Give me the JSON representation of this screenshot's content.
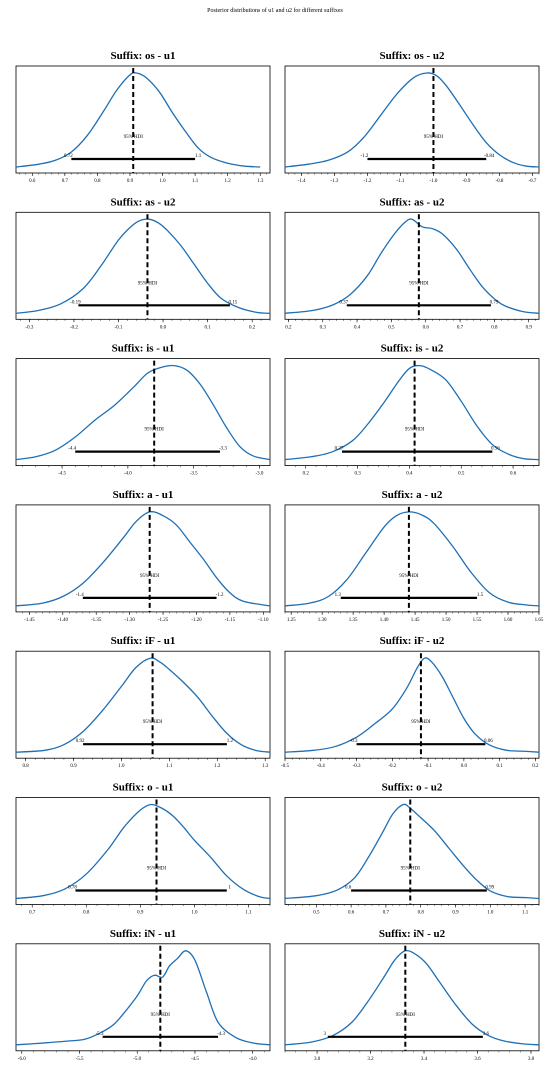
{
  "suptitle": "Posterior distributions of u1 and u2 for different suffixes",
  "chart_data": [
    {
      "type": "area",
      "title": "Suffix: os - u1",
      "xlim": [
        0.55,
        1.33
      ],
      "xticks": [
        {
          "v": 0.6,
          "t": "0.6"
        },
        {
          "v": 0.7,
          "t": "0.7"
        },
        {
          "v": 0.8,
          "t": "0.8"
        },
        {
          "v": 0.9,
          "t": "0.9"
        },
        {
          "v": 1.0,
          "t": "1.0"
        },
        {
          "v": 1.1,
          "t": "1.1"
        },
        {
          "v": 1.2,
          "t": "1.2"
        },
        {
          "v": 1.3,
          "t": "1.3"
        }
      ],
      "mean": 0.91,
      "hdi": [
        0.72,
        1.1
      ],
      "hdi_text": "95% HDI",
      "hdi_labels": [
        "0.72",
        "1.1"
      ],
      "density": {
        "x": [
          0.55,
          0.62,
          0.67,
          0.72,
          0.77,
          0.82,
          0.86,
          0.9,
          0.92,
          0.95,
          0.99,
          1.03,
          1.07,
          1.11,
          1.15,
          1.2,
          1.25,
          1.3
        ],
        "y": [
          0.0,
          0.03,
          0.07,
          0.16,
          0.34,
          0.6,
          0.82,
          0.98,
          1.0,
          0.95,
          0.8,
          0.58,
          0.38,
          0.2,
          0.1,
          0.04,
          0.01,
          0.0
        ]
      }
    },
    {
      "type": "area",
      "title": "Suffix: os - u2",
      "xlim": [
        -1.45,
        -0.68
      ],
      "xticks": [
        {
          "v": -1.4,
          "t": "-1.4"
        },
        {
          "v": -1.3,
          "t": "-1.3"
        },
        {
          "v": -1.2,
          "t": "-1.2"
        },
        {
          "v": -1.1,
          "t": "-1.1"
        },
        {
          "v": -1.0,
          "t": "-1.0"
        },
        {
          "v": -0.9,
          "t": "-0.9"
        },
        {
          "v": -0.8,
          "t": "-0.8"
        },
        {
          "v": -0.7,
          "t": "-0.7"
        }
      ],
      "mean": -1.0,
      "hdi": [
        -1.2,
        -0.84
      ],
      "hdi_text": "95% HDI",
      "hdi_labels": [
        "-1.2",
        "-0.84"
      ],
      "density": {
        "x": [
          -1.45,
          -1.38,
          -1.32,
          -1.26,
          -1.21,
          -1.16,
          -1.11,
          -1.06,
          -1.02,
          -0.99,
          -0.96,
          -0.92,
          -0.88,
          -0.84,
          -0.8,
          -0.76,
          -0.72,
          -0.68
        ],
        "y": [
          0.0,
          0.03,
          0.07,
          0.16,
          0.32,
          0.55,
          0.78,
          0.95,
          1.0,
          0.97,
          0.86,
          0.66,
          0.45,
          0.26,
          0.13,
          0.05,
          0.01,
          0.0
        ]
      }
    },
    {
      "type": "area",
      "title": "Suffix: as - u2",
      "xlim": [
        -0.33,
        0.24
      ],
      "xticks": [
        {
          "v": -0.3,
          "t": "-0.3"
        },
        {
          "v": -0.2,
          "t": "-0.2"
        },
        {
          "v": -0.1,
          "t": "-0.1"
        },
        {
          "v": 0.0,
          "t": "0.0"
        },
        {
          "v": 0.1,
          "t": "0.1"
        },
        {
          "v": 0.2,
          "t": "0.2"
        }
      ],
      "mean": -0.035,
      "hdi": [
        -0.19,
        0.15
      ],
      "hdi_text": "95% HDI",
      "hdi_labels": [
        "-0.19",
        "0.15"
      ],
      "density": {
        "x": [
          -0.33,
          -0.28,
          -0.23,
          -0.18,
          -0.14,
          -0.1,
          -0.07,
          -0.05,
          -0.03,
          -0.01,
          0.01,
          0.04,
          0.07,
          0.1,
          0.13,
          0.17,
          0.21,
          0.24
        ],
        "y": [
          0.0,
          0.03,
          0.1,
          0.26,
          0.5,
          0.78,
          0.93,
          0.99,
          1.0,
          0.96,
          0.88,
          0.72,
          0.52,
          0.32,
          0.16,
          0.06,
          0.01,
          0.0
        ]
      }
    },
    {
      "type": "area",
      "title": "Suffix: as - u2",
      "xlim": [
        0.19,
        0.93
      ],
      "xticks": [
        {
          "v": 0.2,
          "t": "0.2"
        },
        {
          "v": 0.3,
          "t": "0.3"
        },
        {
          "v": 0.4,
          "t": "0.4"
        },
        {
          "v": 0.5,
          "t": "0.5"
        },
        {
          "v": 0.6,
          "t": "0.6"
        },
        {
          "v": 0.7,
          "t": "0.7"
        },
        {
          "v": 0.8,
          "t": "0.8"
        },
        {
          "v": 0.9,
          "t": "0.9"
        }
      ],
      "mean": 0.58,
      "hdi": [
        0.37,
        0.79
      ],
      "hdi_text": "95% HDI",
      "hdi_labels": [
        "0.37",
        "0.79"
      ],
      "density": {
        "x": [
          0.19,
          0.27,
          0.33,
          0.38,
          0.43,
          0.47,
          0.51,
          0.54,
          0.56,
          0.59,
          0.62,
          0.65,
          0.69,
          0.73,
          0.77,
          0.82,
          0.88,
          0.93
        ],
        "y": [
          0.0,
          0.03,
          0.09,
          0.2,
          0.4,
          0.64,
          0.85,
          0.97,
          1.0,
          0.92,
          0.9,
          0.84,
          0.68,
          0.46,
          0.26,
          0.1,
          0.02,
          0.0
        ]
      }
    },
    {
      "type": "area",
      "title": "Suffix: is - u1",
      "xlim": [
        -4.85,
        -2.92
      ],
      "xticks": [
        {
          "v": -4.5,
          "t": "-4.5"
        },
        {
          "v": -4.0,
          "t": "-4.0"
        },
        {
          "v": -3.5,
          "t": "-3.5"
        },
        {
          "v": -3.0,
          "t": "-3.0"
        }
      ],
      "mean": -3.8,
      "hdi": [
        -4.4,
        -3.3
      ],
      "hdi_text": "95% HDI",
      "hdi_labels": [
        "-4.4",
        "-3.3"
      ],
      "density": {
        "x": [
          -4.85,
          -4.7,
          -4.55,
          -4.4,
          -4.25,
          -4.1,
          -3.95,
          -3.85,
          -3.75,
          -3.65,
          -3.55,
          -3.45,
          -3.35,
          -3.25,
          -3.15,
          -3.05,
          -2.92
        ],
        "y": [
          0.0,
          0.03,
          0.1,
          0.24,
          0.42,
          0.58,
          0.78,
          0.92,
          0.98,
          1.0,
          0.95,
          0.8,
          0.58,
          0.34,
          0.14,
          0.04,
          0.0
        ]
      }
    },
    {
      "type": "area",
      "title": "Suffix: is - u2",
      "xlim": [
        0.16,
        0.65
      ],
      "xticks": [
        {
          "v": 0.2,
          "t": "0.2"
        },
        {
          "v": 0.3,
          "t": "0.3"
        },
        {
          "v": 0.4,
          "t": "0.4"
        },
        {
          "v": 0.5,
          "t": "0.5"
        },
        {
          "v": 0.6,
          "t": "0.6"
        }
      ],
      "mean": 0.41,
      "hdi": [
        0.27,
        0.56
      ],
      "hdi_text": "95% HDI",
      "hdi_labels": [
        "0.27",
        "0.56"
      ],
      "density": {
        "x": [
          0.16,
          0.21,
          0.25,
          0.29,
          0.32,
          0.35,
          0.38,
          0.4,
          0.42,
          0.44,
          0.47,
          0.5,
          0.53,
          0.56,
          0.59,
          0.62,
          0.65
        ],
        "y": [
          0.0,
          0.03,
          0.08,
          0.2,
          0.38,
          0.6,
          0.84,
          0.97,
          1.0,
          0.96,
          0.85,
          0.62,
          0.36,
          0.16,
          0.06,
          0.01,
          0.0
        ]
      }
    },
    {
      "type": "area",
      "title": "Suffix: a - u1",
      "xlim": [
        -1.47,
        -1.09
      ],
      "xticks": [
        {
          "v": -1.45,
          "t": "-1.45"
        },
        {
          "v": -1.4,
          "t": "-1.40"
        },
        {
          "v": -1.35,
          "t": "-1.35"
        },
        {
          "v": -1.3,
          "t": "-1.30"
        },
        {
          "v": -1.25,
          "t": "-1.25"
        },
        {
          "v": -1.2,
          "t": "-1.20"
        },
        {
          "v": -1.15,
          "t": "-1.15"
        },
        {
          "v": -1.1,
          "t": "-1.10"
        }
      ],
      "mean": -1.27,
      "hdi": [
        -1.37,
        -1.17
      ],
      "hdi_text": "95% HDI",
      "hdi_labels": [
        "-1.4",
        "-1.2"
      ],
      "density": {
        "x": [
          -1.47,
          -1.43,
          -1.4,
          -1.37,
          -1.34,
          -1.31,
          -1.29,
          -1.27,
          -1.25,
          -1.23,
          -1.21,
          -1.19,
          -1.17,
          -1.15,
          -1.13,
          -1.09
        ],
        "y": [
          0.0,
          0.03,
          0.1,
          0.24,
          0.46,
          0.72,
          0.9,
          1.0,
          0.96,
          0.86,
          0.68,
          0.5,
          0.3,
          0.14,
          0.05,
          0.0
        ]
      }
    },
    {
      "type": "area",
      "title": "Suffix: a - u2",
      "xlim": [
        1.24,
        1.65
      ],
      "xticks": [
        {
          "v": 1.25,
          "t": "1.25"
        },
        {
          "v": 1.3,
          "t": "1.30"
        },
        {
          "v": 1.35,
          "t": "1.35"
        },
        {
          "v": 1.4,
          "t": "1.40"
        },
        {
          "v": 1.45,
          "t": "1.45"
        },
        {
          "v": 1.5,
          "t": "1.50"
        },
        {
          "v": 1.55,
          "t": "1.55"
        },
        {
          "v": 1.6,
          "t": "1.60"
        },
        {
          "v": 1.65,
          "t": "1.65"
        }
      ],
      "mean": 1.44,
      "hdi": [
        1.33,
        1.55
      ],
      "hdi_text": "95% HDI",
      "hdi_labels": [
        "1.3",
        "1.5"
      ],
      "density": {
        "x": [
          1.24,
          1.28,
          1.31,
          1.34,
          1.37,
          1.4,
          1.42,
          1.44,
          1.46,
          1.48,
          1.51,
          1.54,
          1.57,
          1.6,
          1.63,
          1.65
        ],
        "y": [
          0.0,
          0.03,
          0.1,
          0.28,
          0.56,
          0.84,
          0.96,
          1.0,
          0.97,
          0.88,
          0.64,
          0.36,
          0.14,
          0.04,
          0.01,
          0.0
        ]
      }
    },
    {
      "type": "area",
      "title": "Suffix: iF - u1",
      "xlim": [
        0.78,
        1.31
      ],
      "xticks": [
        {
          "v": 0.8,
          "t": "0.8"
        },
        {
          "v": 0.9,
          "t": "0.9"
        },
        {
          "v": 1.0,
          "t": "1.0"
        },
        {
          "v": 1.1,
          "t": "1.1"
        },
        {
          "v": 1.2,
          "t": "1.2"
        },
        {
          "v": 1.3,
          "t": "1.3"
        }
      ],
      "mean": 1.065,
      "hdi": [
        0.92,
        1.22
      ],
      "hdi_text": "95% HDI",
      "hdi_labels": [
        "0.92",
        "1.2"
      ],
      "density": {
        "x": [
          0.78,
          0.84,
          0.88,
          0.92,
          0.96,
          1.0,
          1.03,
          1.06,
          1.08,
          1.1,
          1.13,
          1.16,
          1.19,
          1.22,
          1.25,
          1.28,
          1.31
        ],
        "y": [
          0.0,
          0.02,
          0.08,
          0.22,
          0.44,
          0.7,
          0.9,
          1.0,
          0.96,
          0.88,
          0.74,
          0.58,
          0.38,
          0.2,
          0.08,
          0.02,
          0.0
        ]
      }
    },
    {
      "type": "area",
      "title": "Suffix: iF - u2",
      "xlim": [
        -0.5,
        0.21
      ],
      "xticks": [
        {
          "v": -0.5,
          "t": "-0.5"
        },
        {
          "v": -0.4,
          "t": "-0.4"
        },
        {
          "v": -0.3,
          "t": "-0.3"
        },
        {
          "v": -0.2,
          "t": "-0.2"
        },
        {
          "v": -0.1,
          "t": "-0.1"
        },
        {
          "v": 0.0,
          "t": "0.0"
        },
        {
          "v": 0.1,
          "t": "0.1"
        },
        {
          "v": 0.2,
          "t": "0.2"
        }
      ],
      "mean": -0.12,
      "hdi": [
        -0.3,
        0.06
      ],
      "hdi_text": "95% HDI",
      "hdi_labels": [
        "-0.3",
        "0.06"
      ],
      "density": {
        "x": [
          -0.5,
          -0.42,
          -0.36,
          -0.3,
          -0.25,
          -0.2,
          -0.16,
          -0.13,
          -0.11,
          -0.09,
          -0.06,
          -0.03,
          0.0,
          0.03,
          0.07,
          0.12,
          0.17,
          0.21
        ],
        "y": [
          0.0,
          0.02,
          0.06,
          0.16,
          0.3,
          0.46,
          0.68,
          0.9,
          1.0,
          0.96,
          0.8,
          0.58,
          0.36,
          0.2,
          0.08,
          0.02,
          0.01,
          0.0
        ]
      }
    },
    {
      "type": "area",
      "title": "Suffix: o - u1",
      "xlim": [
        0.67,
        1.14
      ],
      "xticks": [
        {
          "v": 0.7,
          "t": "0.7"
        },
        {
          "v": 0.8,
          "t": "0.8"
        },
        {
          "v": 0.9,
          "t": "0.9"
        },
        {
          "v": 1.0,
          "t": "1.0"
        },
        {
          "v": 1.1,
          "t": "1.1"
        }
      ],
      "mean": 0.93,
      "hdi": [
        0.78,
        1.06
      ],
      "hdi_text": "95% HDI",
      "hdi_labels": [
        "0.78",
        "1"
      ],
      "density": {
        "x": [
          0.67,
          0.72,
          0.76,
          0.8,
          0.84,
          0.87,
          0.9,
          0.92,
          0.94,
          0.96,
          0.98,
          1.0,
          1.03,
          1.06,
          1.09,
          1.12,
          1.14
        ],
        "y": [
          0.0,
          0.03,
          0.1,
          0.26,
          0.52,
          0.76,
          0.94,
          1.0,
          0.96,
          0.88,
          0.76,
          0.62,
          0.44,
          0.24,
          0.1,
          0.02,
          0.0
        ]
      }
    },
    {
      "type": "area",
      "title": "Suffix: o - u2",
      "xlim": [
        0.41,
        1.14
      ],
      "xticks": [
        {
          "v": 0.5,
          "t": "0.5"
        },
        {
          "v": 0.6,
          "t": "0.6"
        },
        {
          "v": 0.7,
          "t": "0.7"
        },
        {
          "v": 0.8,
          "t": "0.8"
        },
        {
          "v": 0.9,
          "t": "0.9"
        },
        {
          "v": 1.0,
          "t": "1.0"
        },
        {
          "v": 1.1,
          "t": "1.1"
        }
      ],
      "mean": 0.77,
      "hdi": [
        0.6,
        0.99
      ],
      "hdi_text": "95% HDI",
      "hdi_labels": [
        "0.6",
        "0.99"
      ],
      "density": {
        "x": [
          0.41,
          0.5,
          0.56,
          0.61,
          0.65,
          0.69,
          0.72,
          0.75,
          0.77,
          0.8,
          0.84,
          0.88,
          0.92,
          0.96,
          1.0,
          1.05,
          1.1,
          1.14
        ],
        "y": [
          0.0,
          0.03,
          0.09,
          0.22,
          0.44,
          0.7,
          0.9,
          1.0,
          0.96,
          0.86,
          0.72,
          0.54,
          0.36,
          0.2,
          0.08,
          0.02,
          0.01,
          0.0
        ]
      }
    },
    {
      "type": "area",
      "title": "Suffix: iN - u1",
      "xlim": [
        -6.05,
        -3.85
      ],
      "xticks": [
        {
          "v": -6.0,
          "t": "-6.0"
        },
        {
          "v": -5.5,
          "t": "-5.5"
        },
        {
          "v": -5.0,
          "t": "-5.0"
        },
        {
          "v": -4.5,
          "t": "-4.5"
        },
        {
          "v": -4.0,
          "t": "-4.0"
        }
      ],
      "mean": -4.8,
      "hdi": [
        -5.3,
        -4.3
      ],
      "hdi_text": "95% HDI",
      "hdi_labels": [
        "-5.3",
        "-4.3"
      ],
      "density": {
        "x": [
          -6.05,
          -5.8,
          -5.6,
          -5.45,
          -5.3,
          -5.2,
          -5.1,
          -5.0,
          -4.92,
          -4.85,
          -4.78,
          -4.72,
          -4.65,
          -4.58,
          -4.5,
          -4.4,
          -4.3,
          -4.15,
          -4.0,
          -3.85
        ],
        "y": [
          0.0,
          0.02,
          0.04,
          0.06,
          0.14,
          0.22,
          0.36,
          0.52,
          0.68,
          0.74,
          0.72,
          0.84,
          0.92,
          1.0,
          0.9,
          0.56,
          0.24,
          0.08,
          0.02,
          0.0
        ]
      }
    },
    {
      "type": "area",
      "title": "Suffix: iN - u2",
      "xlim": [
        2.88,
        3.83
      ],
      "xticks": [
        {
          "v": 3.0,
          "t": "3.0"
        },
        {
          "v": 3.2,
          "t": "3.2"
        },
        {
          "v": 3.4,
          "t": "3.4"
        },
        {
          "v": 3.6,
          "t": "3.6"
        },
        {
          "v": 3.8,
          "t": "3.8"
        }
      ],
      "mean": 3.33,
      "hdi": [
        3.04,
        3.62
      ],
      "hdi_text": "95% HDI",
      "hdi_labels": [
        "3",
        "3.6"
      ],
      "density": {
        "x": [
          2.88,
          2.98,
          3.06,
          3.13,
          3.19,
          3.25,
          3.29,
          3.33,
          3.37,
          3.41,
          3.46,
          3.52,
          3.58,
          3.64,
          3.7,
          3.77,
          3.83
        ],
        "y": [
          0.0,
          0.03,
          0.1,
          0.24,
          0.46,
          0.72,
          0.9,
          1.0,
          0.96,
          0.86,
          0.66,
          0.42,
          0.22,
          0.1,
          0.04,
          0.01,
          0.0
        ]
      }
    }
  ],
  "colors": {
    "curve": "#1f6fb5",
    "frame": "#000000",
    "mean_line": "#000000",
    "hdi_bar": "#000000"
  }
}
